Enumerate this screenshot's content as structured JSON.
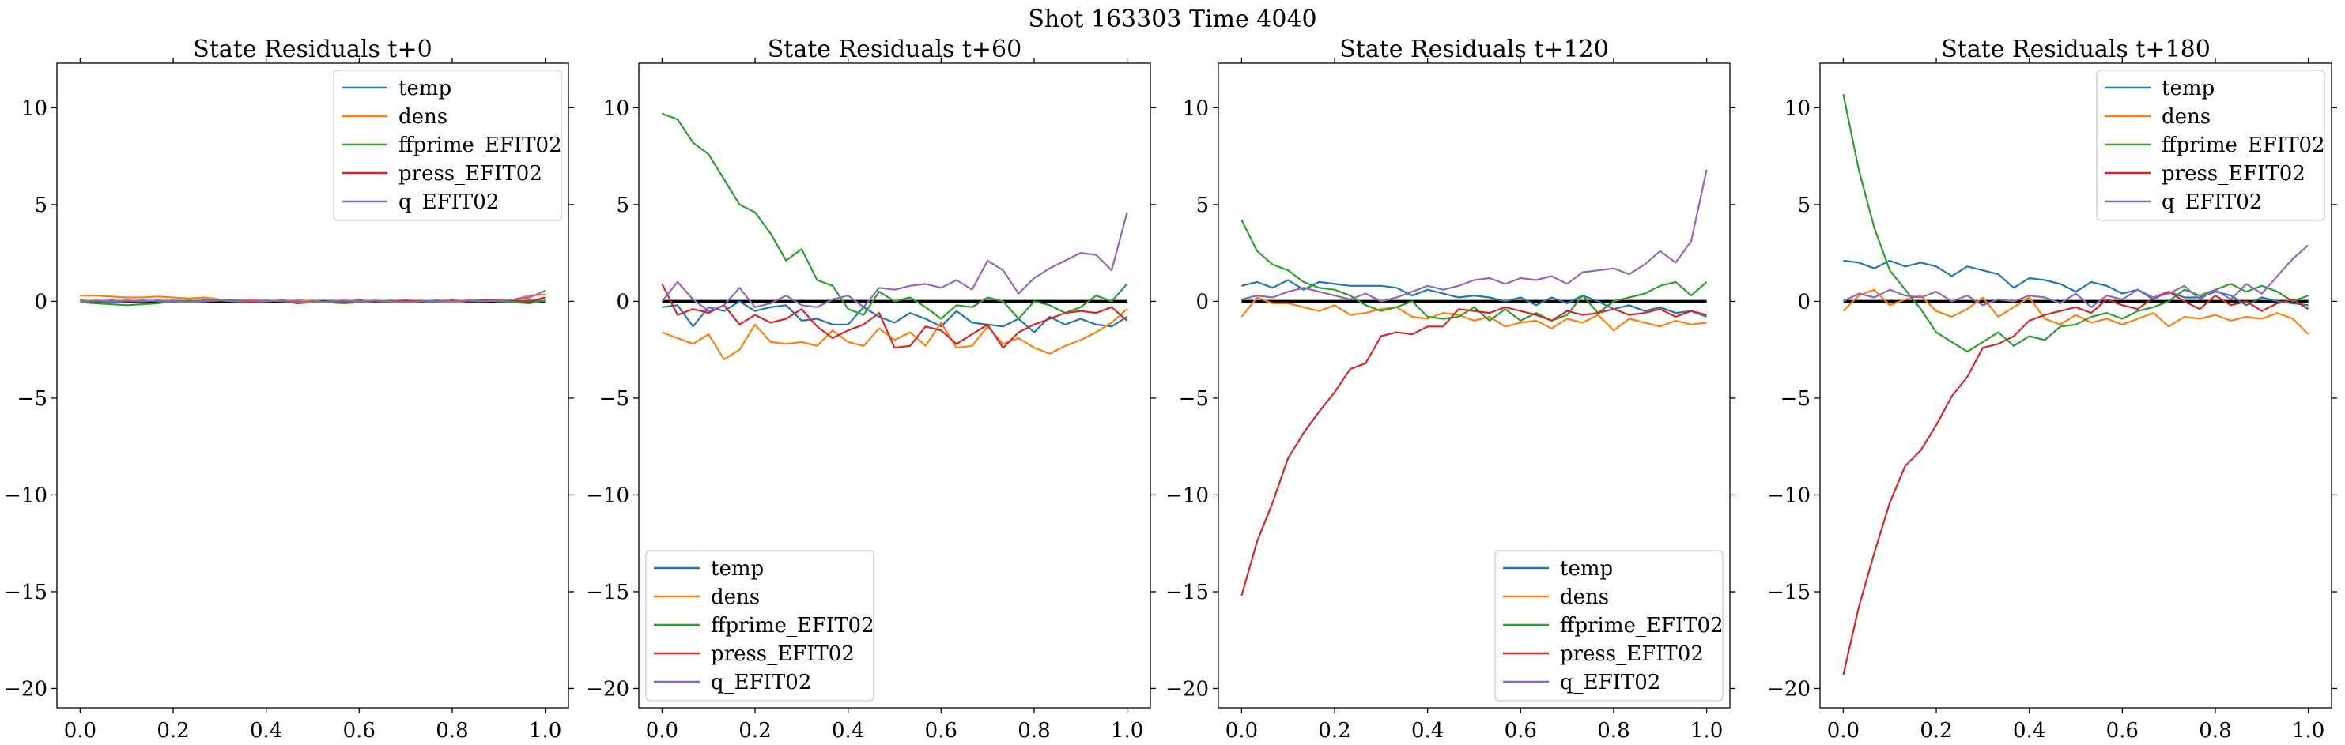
{
  "suptitle": "Shot 163303   Time 4040",
  "colors": {
    "temp": "#1f77b4",
    "dens": "#ff7f0e",
    "ffprime_EFIT02": "#2ca02c",
    "press_EFIT02": "#d62728",
    "q_EFIT02": "#9467bd",
    "zero_line": "#000000"
  },
  "chart_data": [
    {
      "type": "line",
      "title": "State Residuals t+0",
      "xlabel": "",
      "ylabel": "",
      "xlim": [
        -0.05,
        1.05
      ],
      "ylim": [
        -21,
        12.3
      ],
      "xticks": [
        "0.0",
        "0.2",
        "0.4",
        "0.6",
        "0.8",
        "1.0"
      ],
      "yticks": [
        "10",
        "5",
        "0",
        "−5",
        "−10",
        "−15",
        "−20"
      ],
      "legend_position": "upper right",
      "zero_line": true,
      "series": [
        {
          "name": "temp",
          "values": [
            0.05,
            0.0,
            -0.05,
            0.0,
            0.05,
            0.0,
            -0.05,
            0.0,
            0.05,
            0.05,
            0.0,
            -0.05,
            0.0,
            0.05,
            0.0,
            -0.05,
            0.0,
            0.0,
            0.05,
            0.0,
            0.05,
            0.0,
            0.0,
            -0.05,
            0.05,
            0.0,
            0.0,
            0.05,
            0.0,
            0.05,
            0.0
          ]
        },
        {
          "name": "dens",
          "values": [
            0.3,
            0.3,
            0.25,
            0.2,
            0.2,
            0.25,
            0.2,
            0.15,
            0.2,
            0.1,
            0.05,
            0.1,
            0.0,
            0.05,
            0.0,
            0.05,
            -0.05,
            0.0,
            0.05,
            0.0,
            0.05,
            0.0,
            0.05,
            0.0,
            -0.05,
            0.0,
            0.05,
            0.0,
            0.1,
            0.3,
            0.35
          ]
        },
        {
          "name": "ffprime_EFIT02",
          "values": [
            -0.05,
            -0.1,
            -0.15,
            -0.2,
            -0.15,
            -0.1,
            0.0,
            0.05,
            0.0,
            0.1,
            0.05,
            0.0,
            0.05,
            0.0,
            -0.05,
            0.0,
            -0.05,
            -0.1,
            -0.05,
            0.0,
            -0.05,
            -0.05,
            0.0,
            0.05,
            0.0,
            0.05,
            0.05,
            0.0,
            -0.05,
            -0.1,
            0.05
          ]
        },
        {
          "name": "press_EFIT02",
          "values": [
            0.05,
            0.0,
            0.05,
            0.0,
            0.0,
            0.05,
            0.0,
            -0.05,
            0.0,
            0.05,
            0.0,
            -0.05,
            0.0,
            0.05,
            -0.1,
            -0.05,
            0.0,
            0.0,
            0.05,
            0.0,
            0.0,
            0.05,
            0.0,
            0.0,
            0.05,
            0.0,
            0.05,
            0.1,
            0.05,
            0.0,
            0.2
          ]
        },
        {
          "name": "q_EFIT02",
          "values": [
            0.0,
            0.05,
            0.0,
            0.05,
            0.0,
            0.05,
            0.0,
            -0.05,
            0.0,
            0.05,
            0.0,
            0.05,
            0.0,
            0.05,
            0.0,
            -0.05,
            0.0,
            0.05,
            0.0,
            0.05,
            0.0,
            -0.05,
            0.0,
            0.0,
            0.0,
            0.05,
            0.0,
            0.05,
            0.1,
            0.2,
            0.55
          ]
        }
      ]
    },
    {
      "type": "line",
      "title": "State Residuals t+60",
      "xlabel": "",
      "ylabel": "",
      "xlim": [
        -0.05,
        1.05
      ],
      "ylim": [
        -21,
        12.3
      ],
      "xticks": [
        "0.0",
        "0.2",
        "0.4",
        "0.6",
        "0.8",
        "1.0"
      ],
      "yticks": [
        "10",
        "5",
        "0",
        "−5",
        "−10",
        "−15",
        "−20"
      ],
      "legend_position": "lower left",
      "zero_line": true,
      "series": [
        {
          "name": "temp",
          "values": [
            -0.3,
            -0.2,
            -1.3,
            -0.3,
            -0.5,
            0.0,
            -0.5,
            -0.3,
            -0.2,
            -1.0,
            -0.9,
            -1.2,
            -1.2,
            -0.3,
            -0.8,
            -1.1,
            -0.6,
            -0.9,
            -1.3,
            -0.5,
            -1.1,
            -1.2,
            -1.3,
            -0.9,
            -1.6,
            -0.8,
            -1.2,
            -0.9,
            -1.2,
            -1.3,
            -0.8
          ]
        },
        {
          "name": "dens",
          "values": [
            -1.6,
            -1.9,
            -2.2,
            -1.7,
            -3.0,
            -2.5,
            -1.2,
            -2.1,
            -2.2,
            -2.1,
            -2.3,
            -1.5,
            -2.1,
            -2.3,
            -1.4,
            -2.0,
            -1.6,
            -2.3,
            -1.1,
            -2.4,
            -2.3,
            -1.3,
            -2.2,
            -1.9,
            -2.4,
            -2.7,
            -2.3,
            -2.0,
            -1.6,
            -1.1,
            -0.4
          ]
        },
        {
          "name": "ffprime_EFIT02",
          "values": [
            9.7,
            9.4,
            8.2,
            7.6,
            6.3,
            5.0,
            4.6,
            3.5,
            2.1,
            2.7,
            1.1,
            0.8,
            -0.4,
            -0.7,
            0.5,
            0.0,
            0.2,
            -0.3,
            -0.9,
            -0.2,
            -0.3,
            0.2,
            0.0,
            -0.9,
            0.0,
            -0.2,
            -0.6,
            -0.3,
            0.3,
            0.0,
            0.9
          ]
        },
        {
          "name": "press_EFIT02",
          "values": [
            0.9,
            -0.7,
            -0.4,
            -0.6,
            -0.2,
            -1.2,
            -0.7,
            -1.1,
            -0.9,
            -0.4,
            -1.3,
            -1.9,
            -1.5,
            -1.2,
            -0.6,
            -2.4,
            -2.3,
            -1.3,
            -1.5,
            -2.2,
            -1.7,
            -1.2,
            -2.4,
            -1.6,
            -1.2,
            -0.9,
            -0.6,
            -0.5,
            -0.6,
            -0.3,
            -1.0
          ]
        },
        {
          "name": "q_EFIT02",
          "values": [
            0.0,
            1.0,
            0.1,
            -0.5,
            -0.2,
            0.7,
            -0.3,
            -0.1,
            0.3,
            -0.2,
            -0.3,
            0.1,
            0.3,
            -0.3,
            0.7,
            0.6,
            0.8,
            0.9,
            0.7,
            1.1,
            0.6,
            2.1,
            1.6,
            0.4,
            1.2,
            1.7,
            2.1,
            2.5,
            2.4,
            1.6,
            4.6
          ]
        }
      ]
    },
    {
      "type": "line",
      "title": "State Residuals t+120",
      "xlabel": "",
      "ylabel": "",
      "xlim": [
        -0.05,
        1.05
      ],
      "ylim": [
        -21,
        12.3
      ],
      "xticks": [
        "0.0",
        "0.2",
        "0.4",
        "0.6",
        "0.8",
        "1.0"
      ],
      "yticks": [
        "10",
        "5",
        "0",
        "−5",
        "−10",
        "−15",
        "−20"
      ],
      "legend_position": "lower right",
      "zero_line": true,
      "series": [
        {
          "name": "temp",
          "values": [
            0.8,
            1.0,
            0.7,
            1.1,
            0.6,
            1.0,
            0.9,
            0.8,
            0.8,
            0.8,
            0.7,
            0.3,
            0.6,
            0.4,
            0.2,
            0.3,
            0.2,
            0.0,
            0.2,
            -0.2,
            0.2,
            -0.1,
            0.3,
            0.0,
            -0.4,
            -0.2,
            -0.5,
            -0.3,
            -0.6,
            -0.5,
            -0.8
          ]
        },
        {
          "name": "dens",
          "values": [
            -0.8,
            0.2,
            -0.1,
            -0.1,
            -0.3,
            -0.5,
            -0.2,
            -0.7,
            -0.6,
            -0.4,
            -0.3,
            -0.8,
            -0.9,
            -0.6,
            -0.7,
            -1.0,
            -0.8,
            -1.3,
            -1.1,
            -1.0,
            -1.4,
            -0.9,
            -1.1,
            -0.7,
            -1.5,
            -0.9,
            -1.1,
            -1.3,
            -1.0,
            -1.2,
            -1.1
          ]
        },
        {
          "name": "ffprime_EFIT02",
          "values": [
            4.2,
            2.6,
            1.9,
            1.6,
            1.0,
            0.7,
            0.6,
            0.3,
            -0.2,
            -0.5,
            -0.3,
            0.0,
            -0.8,
            -0.9,
            -0.8,
            -0.3,
            -1.0,
            -0.4,
            -1.0,
            -0.6,
            -1.0,
            -0.7,
            0.3,
            -0.6,
            0.0,
            0.2,
            0.4,
            0.8,
            1.0,
            0.3,
            1.0
          ]
        },
        {
          "name": "press_EFIT02",
          "values": [
            -15.2,
            -12.4,
            -10.4,
            -8.1,
            -6.8,
            -5.7,
            -4.7,
            -3.5,
            -3.2,
            -1.8,
            -1.6,
            -1.7,
            -1.3,
            -1.3,
            -0.4,
            -0.5,
            -0.6,
            -0.3,
            -0.5,
            -0.7,
            -1.0,
            -0.5,
            -0.7,
            -0.6,
            -0.4,
            -0.7,
            -0.6,
            -0.4,
            -0.8,
            -0.5,
            -0.7
          ]
        },
        {
          "name": "q_EFIT02",
          "values": [
            0.1,
            0.3,
            0.2,
            0.5,
            0.7,
            0.5,
            0.3,
            0.1,
            0.4,
            0.0,
            0.2,
            0.5,
            0.8,
            0.6,
            0.8,
            1.1,
            1.2,
            0.9,
            1.2,
            1.1,
            1.3,
            0.9,
            1.5,
            1.6,
            1.7,
            1.4,
            1.9,
            2.6,
            2.0,
            3.1,
            6.8
          ]
        }
      ]
    },
    {
      "type": "line",
      "title": "State Residuals t+180",
      "xlabel": "",
      "ylabel": "",
      "xlim": [
        -0.05,
        1.05
      ],
      "ylim": [
        -21,
        12.3
      ],
      "xticks": [
        "0.0",
        "0.2",
        "0.4",
        "0.6",
        "0.8",
        "1.0"
      ],
      "yticks": [
        "10",
        "5",
        "0",
        "−5",
        "−10",
        "−15",
        "−20"
      ],
      "legend_position": "upper right",
      "zero_line": true,
      "series": [
        {
          "name": "temp",
          "values": [
            2.1,
            2.0,
            1.7,
            2.1,
            1.8,
            2.0,
            1.8,
            1.3,
            1.8,
            1.6,
            1.4,
            0.7,
            1.2,
            1.1,
            0.9,
            0.5,
            1.0,
            0.8,
            0.4,
            0.6,
            0.1,
            0.5,
            0.2,
            0.2,
            0.5,
            0.3,
            -0.2,
            0.2,
            0.0,
            -0.1,
            -0.2
          ]
        },
        {
          "name": "dens",
          "values": [
            -0.5,
            0.3,
            0.6,
            -0.2,
            0.1,
            0.3,
            -0.5,
            -0.8,
            -0.4,
            0.2,
            -0.8,
            -0.3,
            0.2,
            -0.9,
            -1.2,
            -0.7,
            -1.1,
            -0.9,
            -1.2,
            -0.9,
            -0.6,
            -1.3,
            -0.8,
            -0.9,
            -0.7,
            -1.0,
            -0.8,
            -0.9,
            -0.6,
            -0.9,
            -1.7
          ]
        },
        {
          "name": "ffprime_EFIT02",
          "values": [
            10.7,
            6.8,
            3.8,
            1.6,
            0.6,
            -0.4,
            -1.6,
            -2.1,
            -2.6,
            -2.1,
            -1.6,
            -2.3,
            -1.8,
            -2.0,
            -1.3,
            -1.2,
            -0.8,
            -0.6,
            -0.9,
            -0.5,
            -0.3,
            0.0,
            0.6,
            0.3,
            0.6,
            0.9,
            0.5,
            0.8,
            0.5,
            0.0,
            0.3
          ]
        },
        {
          "name": "press_EFIT02",
          "values": [
            -19.3,
            -15.8,
            -13.0,
            -10.4,
            -8.5,
            -7.7,
            -6.4,
            -4.9,
            -3.9,
            -2.4,
            -2.2,
            -1.8,
            -1.0,
            -0.7,
            -0.5,
            -0.3,
            -0.6,
            0.1,
            -0.2,
            -0.4,
            0.2,
            0.5,
            0.0,
            -0.4,
            0.3,
            -0.2,
            0.0,
            -0.5,
            -0.1,
            0.1,
            -0.4
          ]
        },
        {
          "name": "q_EFIT02",
          "values": [
            0.0,
            0.4,
            0.2,
            0.6,
            0.3,
            0.2,
            0.5,
            0.0,
            0.3,
            -0.2,
            0.1,
            0.0,
            0.3,
            0.2,
            -0.1,
            0.4,
            -0.3,
            0.3,
            0.1,
            0.6,
            0.2,
            0.4,
            0.8,
            0.1,
            0.6,
            0.1,
            0.9,
            0.4,
            1.3,
            2.2,
            2.9
          ]
        }
      ]
    }
  ]
}
